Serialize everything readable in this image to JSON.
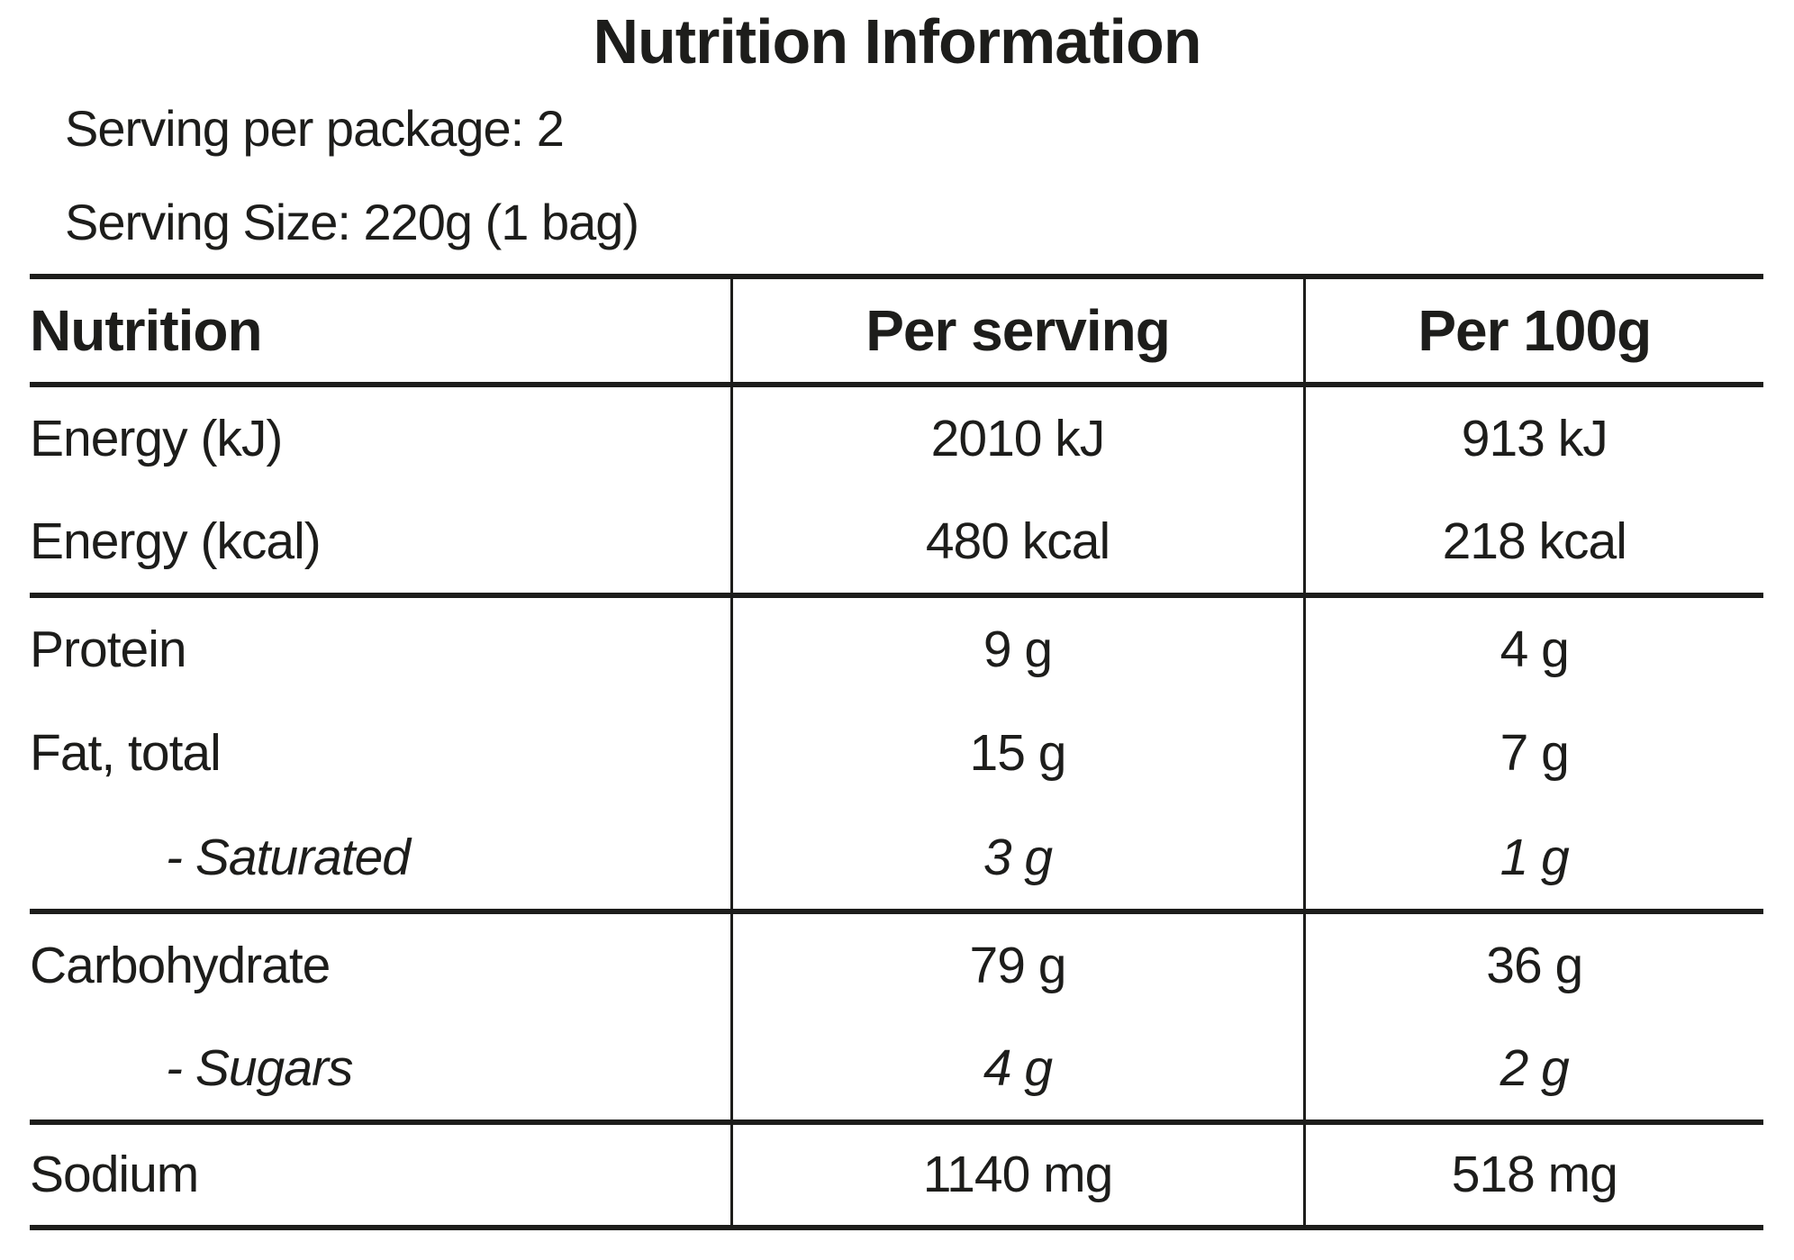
{
  "title": "Nutrition Information",
  "serving_per_package": "Serving per package: 2",
  "serving_size": "Serving Size: 220g (1 bag)",
  "colors": {
    "text": "#1d1d1b",
    "rules": "#1d1d1b",
    "background": "#ffffff"
  },
  "table": {
    "columns": [
      "Nutrition",
      "Per serving",
      "Per 100g"
    ],
    "rows": [
      {
        "label": "Energy (kJ)",
        "per_serving": "2010 kJ",
        "per_100g": "913 kJ"
      },
      {
        "label": "Energy (kcal)",
        "per_serving": "480 kcal",
        "per_100g": "218 kcal"
      },
      {
        "label": "Protein",
        "per_serving": "9 g",
        "per_100g": "4 g"
      },
      {
        "label": "Fat, total",
        "per_serving": "15 g",
        "per_100g": "7 g"
      },
      {
        "label": "- Saturated",
        "per_serving": "3 g",
        "per_100g": "1 g"
      },
      {
        "label": "Carbohydrate",
        "per_serving": "79 g",
        "per_100g": "36 g"
      },
      {
        "label": "- Sugars",
        "per_serving": "4 g",
        "per_100g": "2 g"
      },
      {
        "label": "Sodium",
        "per_serving": "1140 mg",
        "per_100g": "518 mg"
      }
    ]
  }
}
